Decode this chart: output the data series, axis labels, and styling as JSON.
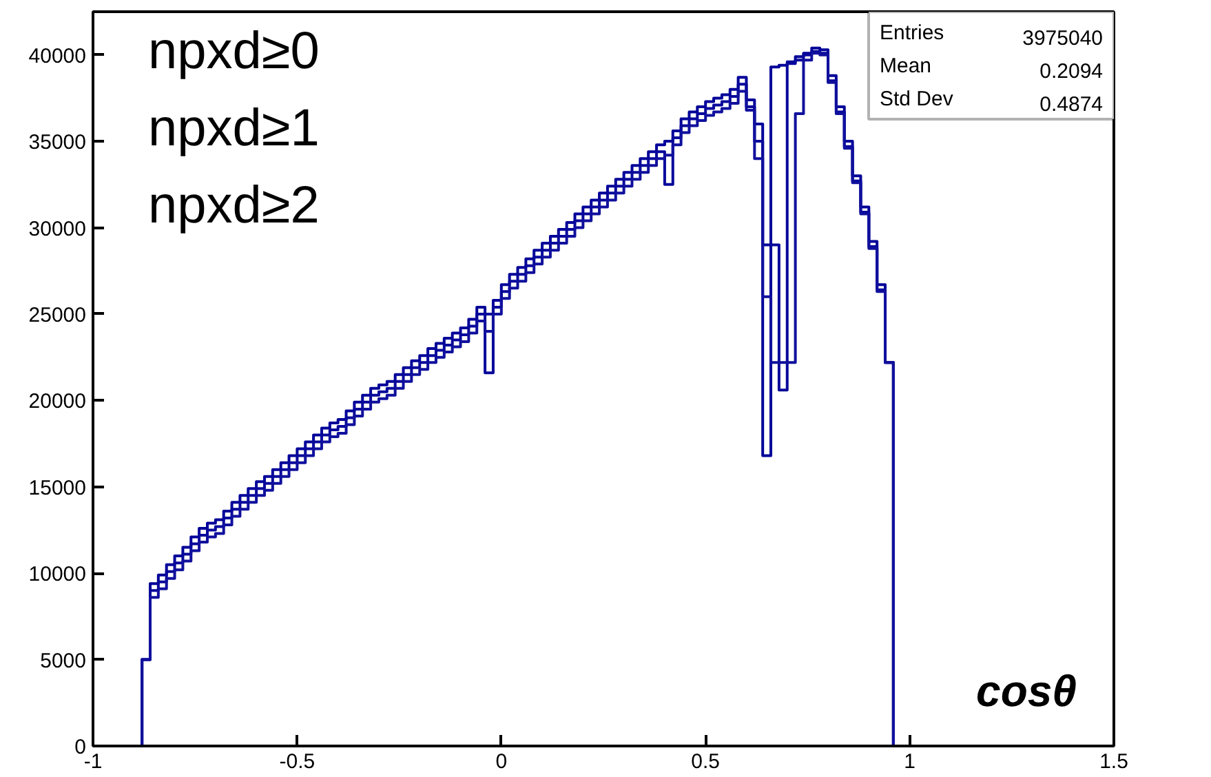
{
  "chart_data": {
    "type": "histogram",
    "xlabel": "cosθ",
    "bins": [
      -1.0,
      -0.98,
      -0.96,
      -0.94,
      -0.92,
      -0.9,
      -0.88,
      -0.86,
      -0.84,
      -0.82,
      -0.8,
      -0.78,
      -0.76,
      -0.74,
      -0.72,
      -0.7,
      -0.68,
      -0.66,
      -0.64,
      -0.62,
      -0.6,
      -0.58,
      -0.56,
      -0.54,
      -0.52,
      -0.5,
      -0.48,
      -0.46,
      -0.44,
      -0.42,
      -0.4,
      -0.38,
      -0.36,
      -0.34,
      -0.32,
      -0.3,
      -0.28,
      -0.26,
      -0.24,
      -0.22,
      -0.2,
      -0.18,
      -0.16,
      -0.14,
      -0.12,
      -0.1,
      -0.08,
      -0.06,
      -0.04,
      -0.02,
      0.0,
      0.02,
      0.04,
      0.06,
      0.08,
      0.1,
      0.12,
      0.14,
      0.16,
      0.18,
      0.2,
      0.22,
      0.24,
      0.26,
      0.28,
      0.3,
      0.32,
      0.34,
      0.36,
      0.38,
      0.4,
      0.42,
      0.44,
      0.46,
      0.48,
      0.5,
      0.52,
      0.54,
      0.56,
      0.58,
      0.6,
      0.62,
      0.64,
      0.66,
      0.68,
      0.7,
      0.72,
      0.74,
      0.76,
      0.78,
      0.8,
      0.82,
      0.84,
      0.86,
      0.88,
      0.9,
      0.92,
      0.94,
      0.96,
      0.98,
      1.0,
      1.02,
      1.04,
      1.06,
      1.08,
      1.1,
      1.12,
      1.14,
      1.16,
      1.18,
      1.2,
      1.22,
      1.24,
      1.26,
      1.28,
      1.3,
      1.32,
      1.34,
      1.36,
      1.38,
      1.4,
      1.42,
      1.44,
      1.46,
      1.48,
      1.5
    ],
    "series": [
      {
        "color": "#000099",
        "values": [
          0,
          0,
          0,
          0,
          0,
          0,
          5000,
          9400,
          9900,
          10500,
          11000,
          11500,
          12100,
          12600,
          12900,
          13100,
          13600,
          14100,
          14500,
          14900,
          15300,
          15600,
          16000,
          16400,
          16800,
          17200,
          17600,
          18000,
          18400,
          18700,
          18900,
          19400,
          19900,
          20300,
          20700,
          20900,
          21100,
          21500,
          21900,
          22300,
          22600,
          23000,
          23300,
          23600,
          23900,
          24200,
          24700,
          25400,
          25000,
          25800,
          26700,
          27300,
          27700,
          28200,
          28700,
          29100,
          29500,
          29900,
          30300,
          30800,
          31200,
          31600,
          32000,
          32400,
          32800,
          33200,
          33600,
          34000,
          34400,
          34800,
          35000,
          35600,
          36300,
          36700,
          37000,
          37300,
          37500,
          37700,
          38000,
          38700,
          37400,
          36000,
          16800,
          39300,
          39400,
          39600,
          39900,
          40100,
          40400,
          40300,
          38800,
          37000,
          35000,
          33000,
          31200,
          29200,
          26700,
          22200,
          0,
          0,
          0,
          0,
          0,
          0,
          0,
          0,
          0,
          0,
          0,
          0,
          0,
          0,
          0,
          0,
          0,
          0,
          0,
          0,
          0,
          0,
          0,
          0,
          0,
          0,
          0
        ]
      },
      {
        "color": "#08089b",
        "values": [
          0,
          0,
          0,
          0,
          0,
          0,
          5000,
          9000,
          9500,
          10100,
          10600,
          11100,
          11700,
          12200,
          12500,
          12700,
          13200,
          13700,
          14100,
          14500,
          14900,
          15200,
          15600,
          16000,
          16400,
          16800,
          17200,
          17600,
          18000,
          18300,
          18500,
          19000,
          19500,
          19900,
          20300,
          20500,
          20700,
          21100,
          21500,
          21900,
          22200,
          22600,
          22900,
          23200,
          23500,
          23800,
          24300,
          25000,
          21600,
          25400,
          26300,
          26900,
          27300,
          27800,
          28300,
          28700,
          29100,
          29500,
          29900,
          30400,
          30800,
          31200,
          31600,
          32000,
          32400,
          32800,
          33200,
          33600,
          34000,
          34400,
          32500,
          35200,
          35900,
          36300,
          36600,
          36900,
          37100,
          37300,
          37600,
          38300,
          37000,
          35000,
          29000,
          29000,
          20600,
          39500,
          39700,
          40000,
          40200,
          40100,
          38500,
          36700,
          34700,
          32700,
          30900,
          28900,
          26400,
          22200,
          0,
          0,
          0,
          0,
          0,
          0,
          0,
          0,
          0,
          0,
          0,
          0,
          0,
          0,
          0,
          0,
          0,
          0,
          0,
          0,
          0,
          0,
          0,
          0,
          0,
          0,
          0
        ]
      },
      {
        "color": "#10109d",
        "values": [
          0,
          0,
          0,
          0,
          0,
          0,
          5000,
          8600,
          9100,
          9700,
          10200,
          10700,
          11300,
          11800,
          12100,
          12300,
          12800,
          13300,
          13700,
          14100,
          14500,
          14800,
          15200,
          15600,
          16000,
          16400,
          16800,
          17200,
          17600,
          17900,
          18100,
          18600,
          19100,
          19500,
          19900,
          20100,
          20300,
          20700,
          21100,
          21500,
          21800,
          22200,
          22500,
          22800,
          23100,
          23400,
          23900,
          24600,
          24000,
          25000,
          25900,
          26500,
          26900,
          27400,
          27900,
          28300,
          28700,
          29100,
          29500,
          30000,
          30400,
          30800,
          31200,
          31600,
          32000,
          32400,
          32800,
          33200,
          33600,
          34000,
          34200,
          34800,
          35500,
          35900,
          36200,
          36500,
          36700,
          36900,
          37200,
          37900,
          36800,
          34000,
          26000,
          22200,
          22200,
          22200,
          36600,
          39700,
          40100,
          40000,
          38400,
          36600,
          34600,
          32600,
          30800,
          28800,
          26300,
          22200,
          0,
          0,
          0,
          0,
          0,
          0,
          0,
          0,
          0,
          0,
          0,
          0,
          0,
          0,
          0,
          0,
          0,
          0,
          0,
          0,
          0,
          0,
          0,
          0,
          0,
          0,
          0
        ]
      }
    ],
    "xlim": [
      -1,
      1.5
    ],
    "xticks": [
      -1,
      -0.5,
      0,
      0.5,
      1,
      1.5
    ],
    "ylim": [
      0,
      42500
    ],
    "yticks": [
      0,
      5000,
      10000,
      15000,
      20000,
      25000,
      30000,
      35000,
      40000
    ],
    "grid": false,
    "annotations": [
      "npxd≥0",
      "npxd≥1",
      "npxd≥2",
      "Entries 3975040",
      "Mean 0.2094",
      "Std Dev 0.4874"
    ]
  }
}
